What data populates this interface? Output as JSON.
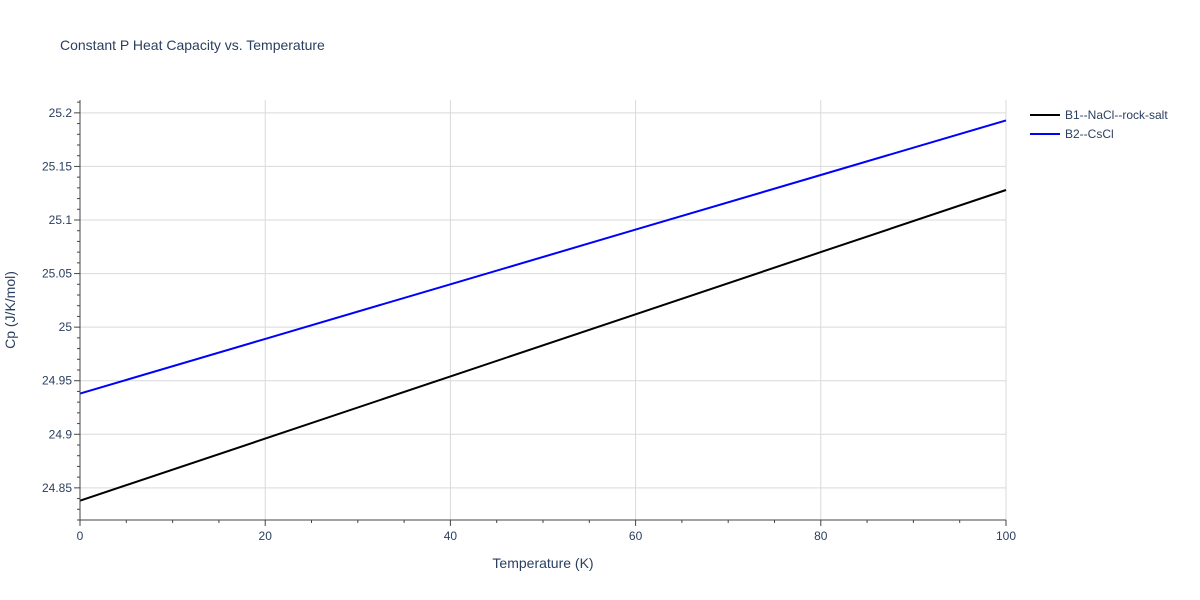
{
  "chart_data": {
    "type": "line",
    "title": "Constant P Heat Capacity vs. Temperature",
    "xlabel": "Temperature (K)",
    "ylabel": "Cp (J/K/mol)",
    "xlim": [
      0,
      100
    ],
    "ylim": [
      24.82,
      25.212
    ],
    "x_ticks": [
      0,
      20,
      40,
      60,
      80,
      100
    ],
    "x_tick_labels": [
      "0",
      "20",
      "40",
      "60",
      "80",
      "100"
    ],
    "y_ticks": [
      24.85,
      24.9,
      24.95,
      25.0,
      25.05,
      25.1,
      25.15,
      25.2
    ],
    "y_tick_labels": [
      "24.85",
      "24.9",
      "24.95",
      "25",
      "25.05",
      "25.1",
      "25.15",
      "25.2"
    ],
    "grid": true,
    "legend_position": "top-right",
    "series": [
      {
        "name": "B1--NaCl--rock-salt",
        "color": "#000000",
        "x": [
          0,
          20,
          40,
          60,
          80,
          100
        ],
        "y": [
          24.838,
          24.896,
          24.954,
          25.012,
          25.07,
          25.128
        ]
      },
      {
        "name": "B2--CsCl",
        "color": "#0000ff",
        "x": [
          0,
          20,
          40,
          60,
          80,
          100
        ],
        "y": [
          24.938,
          24.989,
          25.04,
          25.091,
          25.142,
          25.193
        ]
      }
    ]
  }
}
